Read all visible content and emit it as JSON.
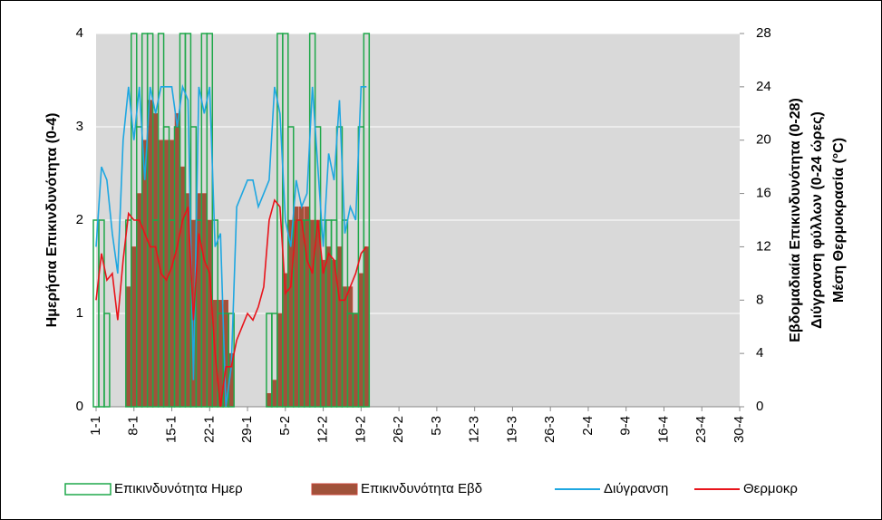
{
  "chart_data": {
    "type": "combo",
    "ylabel": "Ημερήσια Επικινδυνότητα (0-4)",
    "y2label": [
      "Εβδομαδιαία Επικινδυνότητα (0-28)",
      "Διύγρανση φύλλων (0-24 ώρες)",
      "Μέση Θερμοκρασία (°C)"
    ],
    "categories": [
      "1-1",
      null,
      null,
      null,
      null,
      null,
      null,
      "8-1",
      null,
      null,
      null,
      null,
      null,
      null,
      "15-1",
      null,
      null,
      null,
      null,
      null,
      null,
      "22-1",
      null,
      null,
      null,
      null,
      null,
      null,
      "29-1",
      null,
      null,
      null,
      null,
      null,
      null,
      "5-2",
      null,
      null,
      null,
      null,
      null,
      null,
      "12-2",
      null,
      null,
      null,
      null,
      null,
      null,
      "19-2",
      null,
      null,
      null,
      null,
      null,
      null,
      "26-2",
      null,
      null,
      null,
      null,
      null,
      null,
      "5-3",
      null,
      null,
      null,
      null,
      null,
      null,
      "12-3",
      null,
      null,
      null,
      null,
      null,
      null,
      "19-3",
      null,
      null,
      null,
      null,
      null,
      null,
      "26-3",
      null,
      null,
      null,
      null,
      null,
      null,
      "2-4",
      null,
      null,
      null,
      null,
      null,
      null,
      "9-4",
      null,
      null,
      null,
      null,
      null,
      null,
      "16-4",
      null,
      null,
      null,
      null,
      null,
      null,
      "23-4",
      null,
      null,
      null,
      null,
      null,
      null,
      "30-4"
    ],
    "series": [
      {
        "name": "Επικινδυνότητα Ημερ",
        "type": "bar",
        "style": "outline",
        "axis": "y",
        "color": "#1fa84a",
        "values": [
          2,
          2,
          1,
          0,
          0,
          0,
          2,
          4,
          3,
          4,
          4,
          2,
          4,
          3,
          2,
          3,
          4,
          4,
          3,
          2,
          4,
          4,
          2,
          1,
          1,
          1,
          0,
          0,
          0,
          0,
          0,
          0,
          1,
          1,
          4,
          4,
          3,
          2,
          2,
          2,
          4,
          3,
          2,
          2,
          2,
          3,
          2,
          1,
          1,
          3,
          4,
          null,
          null,
          null,
          null,
          null,
          null,
          null,
          null,
          null,
          null,
          null,
          null,
          null,
          null,
          null,
          null,
          null,
          null,
          null,
          null,
          null,
          null,
          null,
          null,
          null,
          null,
          null,
          null,
          null,
          null,
          null,
          null,
          null,
          null,
          null,
          null,
          null,
          null,
          null,
          null,
          null,
          null,
          null,
          null,
          null,
          null,
          null,
          null,
          null,
          null,
          null,
          null,
          null,
          null,
          null,
          null,
          null,
          null,
          null,
          null,
          null,
          null,
          null,
          null,
          null,
          null,
          null,
          null,
          null
        ]
      },
      {
        "name": "Επικινδυνότητα Εβδ",
        "type": "bar",
        "style": "fill",
        "axis": "y2",
        "color": "#a0523a",
        "values": [
          0,
          0,
          0,
          0,
          0,
          0,
          9,
          12,
          16,
          20,
          23,
          22,
          20,
          20,
          20,
          22,
          18,
          16,
          14,
          16,
          16,
          14,
          8,
          8,
          8,
          4,
          0,
          0,
          0,
          0,
          0,
          0,
          1,
          2,
          7,
          10,
          14,
          15,
          15,
          15,
          14,
          14,
          11,
          12,
          11,
          12,
          9,
          9,
          7,
          10,
          12,
          null,
          null,
          null,
          null,
          null,
          null,
          null,
          null,
          null,
          null,
          null,
          null,
          null,
          null,
          null,
          null,
          null,
          null,
          null,
          null,
          null,
          null,
          null,
          null,
          null,
          null,
          null,
          null,
          null,
          null,
          null,
          null,
          null,
          null,
          null,
          null,
          null,
          null,
          null,
          null,
          null,
          null,
          null,
          null,
          null,
          null,
          null,
          null,
          null,
          null,
          null,
          null,
          null,
          null,
          null,
          null,
          null,
          null,
          null,
          null,
          null,
          null,
          null,
          null,
          null,
          null,
          null,
          null,
          null
        ]
      },
      {
        "name": "Διύγρανση",
        "type": "line",
        "axis": "y2",
        "color": "#1ea7e1",
        "values": [
          12,
          18,
          17,
          13,
          10,
          20,
          24,
          20,
          24,
          17,
          24,
          22,
          24,
          24,
          24,
          21,
          24,
          23,
          2,
          24,
          22,
          24,
          12,
          13,
          0,
          3,
          15,
          16,
          17,
          17,
          15,
          16,
          17,
          24,
          22,
          14,
          12,
          17,
          15,
          16,
          24,
          18,
          12,
          19,
          17,
          23,
          13,
          15,
          14,
          24,
          24,
          null,
          null,
          null,
          null,
          null,
          null,
          null,
          null,
          null,
          null,
          null,
          null,
          null,
          null,
          null,
          null,
          null,
          null,
          null,
          null,
          null,
          null,
          null,
          null,
          null,
          null,
          null,
          null,
          null,
          null,
          null,
          null,
          null,
          null,
          null,
          null,
          null,
          null,
          null,
          null,
          null,
          null,
          null,
          null,
          null,
          null,
          null,
          null,
          null,
          null,
          null,
          null,
          null,
          null,
          null,
          null,
          null,
          null,
          null,
          null,
          null,
          null,
          null,
          null,
          null,
          null,
          null,
          null,
          null
        ]
      },
      {
        "name": "Θερμοκρ",
        "type": "line",
        "axis": "y2",
        "color": "#e8141b",
        "values": [
          8,
          11.5,
          9.5,
          10,
          6.5,
          11,
          14.5,
          14,
          14,
          13,
          12,
          12,
          10,
          9.5,
          10.5,
          12,
          14,
          15,
          6.5,
          13,
          11,
          10,
          4,
          0,
          3,
          3,
          5,
          6,
          7,
          6.5,
          7.5,
          9,
          14,
          15.5,
          15,
          8.5,
          9,
          14,
          14,
          11,
          10,
          14,
          10,
          11.5,
          11,
          8,
          8,
          9,
          10,
          11.5,
          12,
          null,
          null,
          null,
          null,
          null,
          null,
          null,
          null,
          null,
          null,
          null,
          null,
          null,
          null,
          null,
          null,
          null,
          null,
          null,
          null,
          null,
          null,
          null,
          null,
          null,
          null,
          null,
          null,
          null,
          null,
          null,
          null,
          null,
          null,
          null,
          null,
          null,
          null,
          null,
          null,
          null,
          null,
          null,
          null,
          null,
          null,
          null,
          null,
          null,
          null,
          null,
          null,
          null,
          null,
          null,
          null,
          null,
          null,
          null,
          null,
          null,
          null,
          null,
          null,
          null,
          null,
          null,
          null,
          null
        ]
      }
    ],
    "ylim": [
      0,
      4
    ],
    "yticks": [
      0,
      1,
      2,
      3,
      4
    ],
    "y2lim": [
      0,
      28
    ],
    "y2ticks": [
      0,
      4,
      8,
      12,
      16,
      20,
      24,
      28
    ],
    "grid": true,
    "legend": "bottom"
  }
}
